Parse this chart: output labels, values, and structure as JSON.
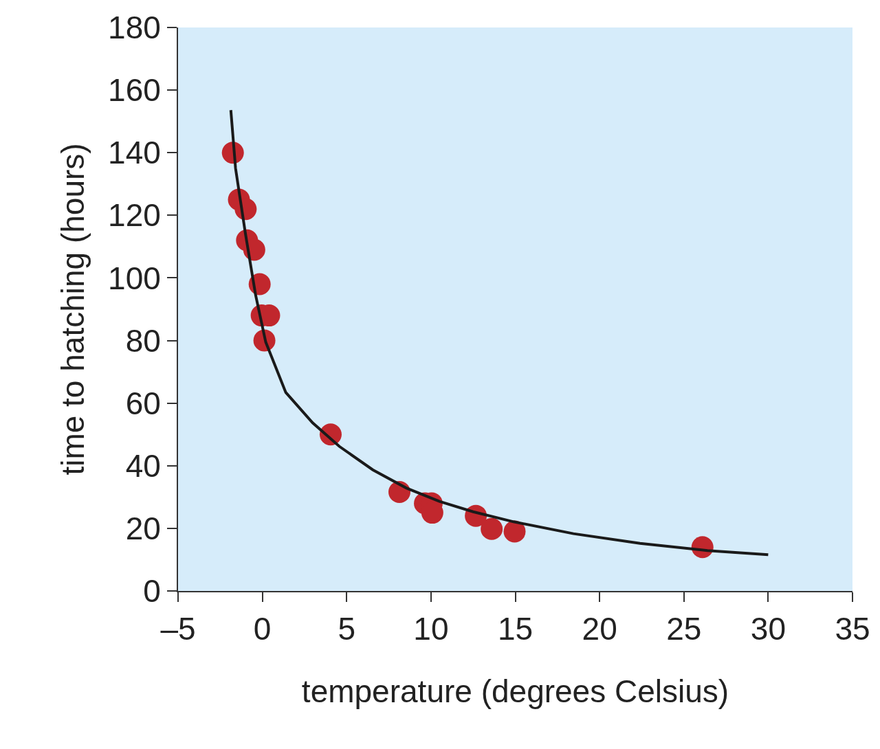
{
  "chart_data": {
    "type": "scatter",
    "xlabel": "temperature (degrees Celsius)",
    "ylabel": "time to hatching (hours)",
    "xlim": [
      -5,
      35
    ],
    "ylim": [
      0,
      180
    ],
    "xticks": [
      {
        "value": -5,
        "label": "–5"
      },
      0,
      5,
      10,
      15,
      20,
      25,
      30,
      35
    ],
    "yticks": [
      0,
      20,
      40,
      60,
      80,
      100,
      120,
      140,
      160,
      180
    ],
    "grid": false,
    "marker": "circle",
    "series": [
      {
        "color": "#c1272d",
        "x": [
          -1.75,
          -1.39,
          -0.99,
          -0.91,
          -0.48,
          -0.16,
          -0.04,
          0.4,
          0.12,
          4.05,
          8.13,
          9.64,
          10.04,
          10.08,
          12.66,
          13.6,
          14.96,
          26.1
        ],
        "values": [
          140,
          125,
          122,
          112,
          109,
          98,
          88,
          88,
          80,
          50,
          31.6,
          28,
          28,
          25,
          24,
          19.8,
          19,
          14
        ]
      },
      {
        "type": "line",
        "color": "#1a1a1a",
        "marker": "none",
        "x": [
          -1.87,
          -1.59,
          -1,
          -0.4,
          0.2,
          1.39,
          2.98,
          4.56,
          6.55,
          8.53,
          10.5,
          12.5,
          14.9,
          18.45,
          22.4,
          26.4,
          30
        ],
        "values": [
          153.6,
          135,
          114,
          94.5,
          79.5,
          63.4,
          53.7,
          46.2,
          38.7,
          32.9,
          28.6,
          25.3,
          22.1,
          18.3,
          15.2,
          12.9,
          11.6
        ]
      }
    ]
  }
}
